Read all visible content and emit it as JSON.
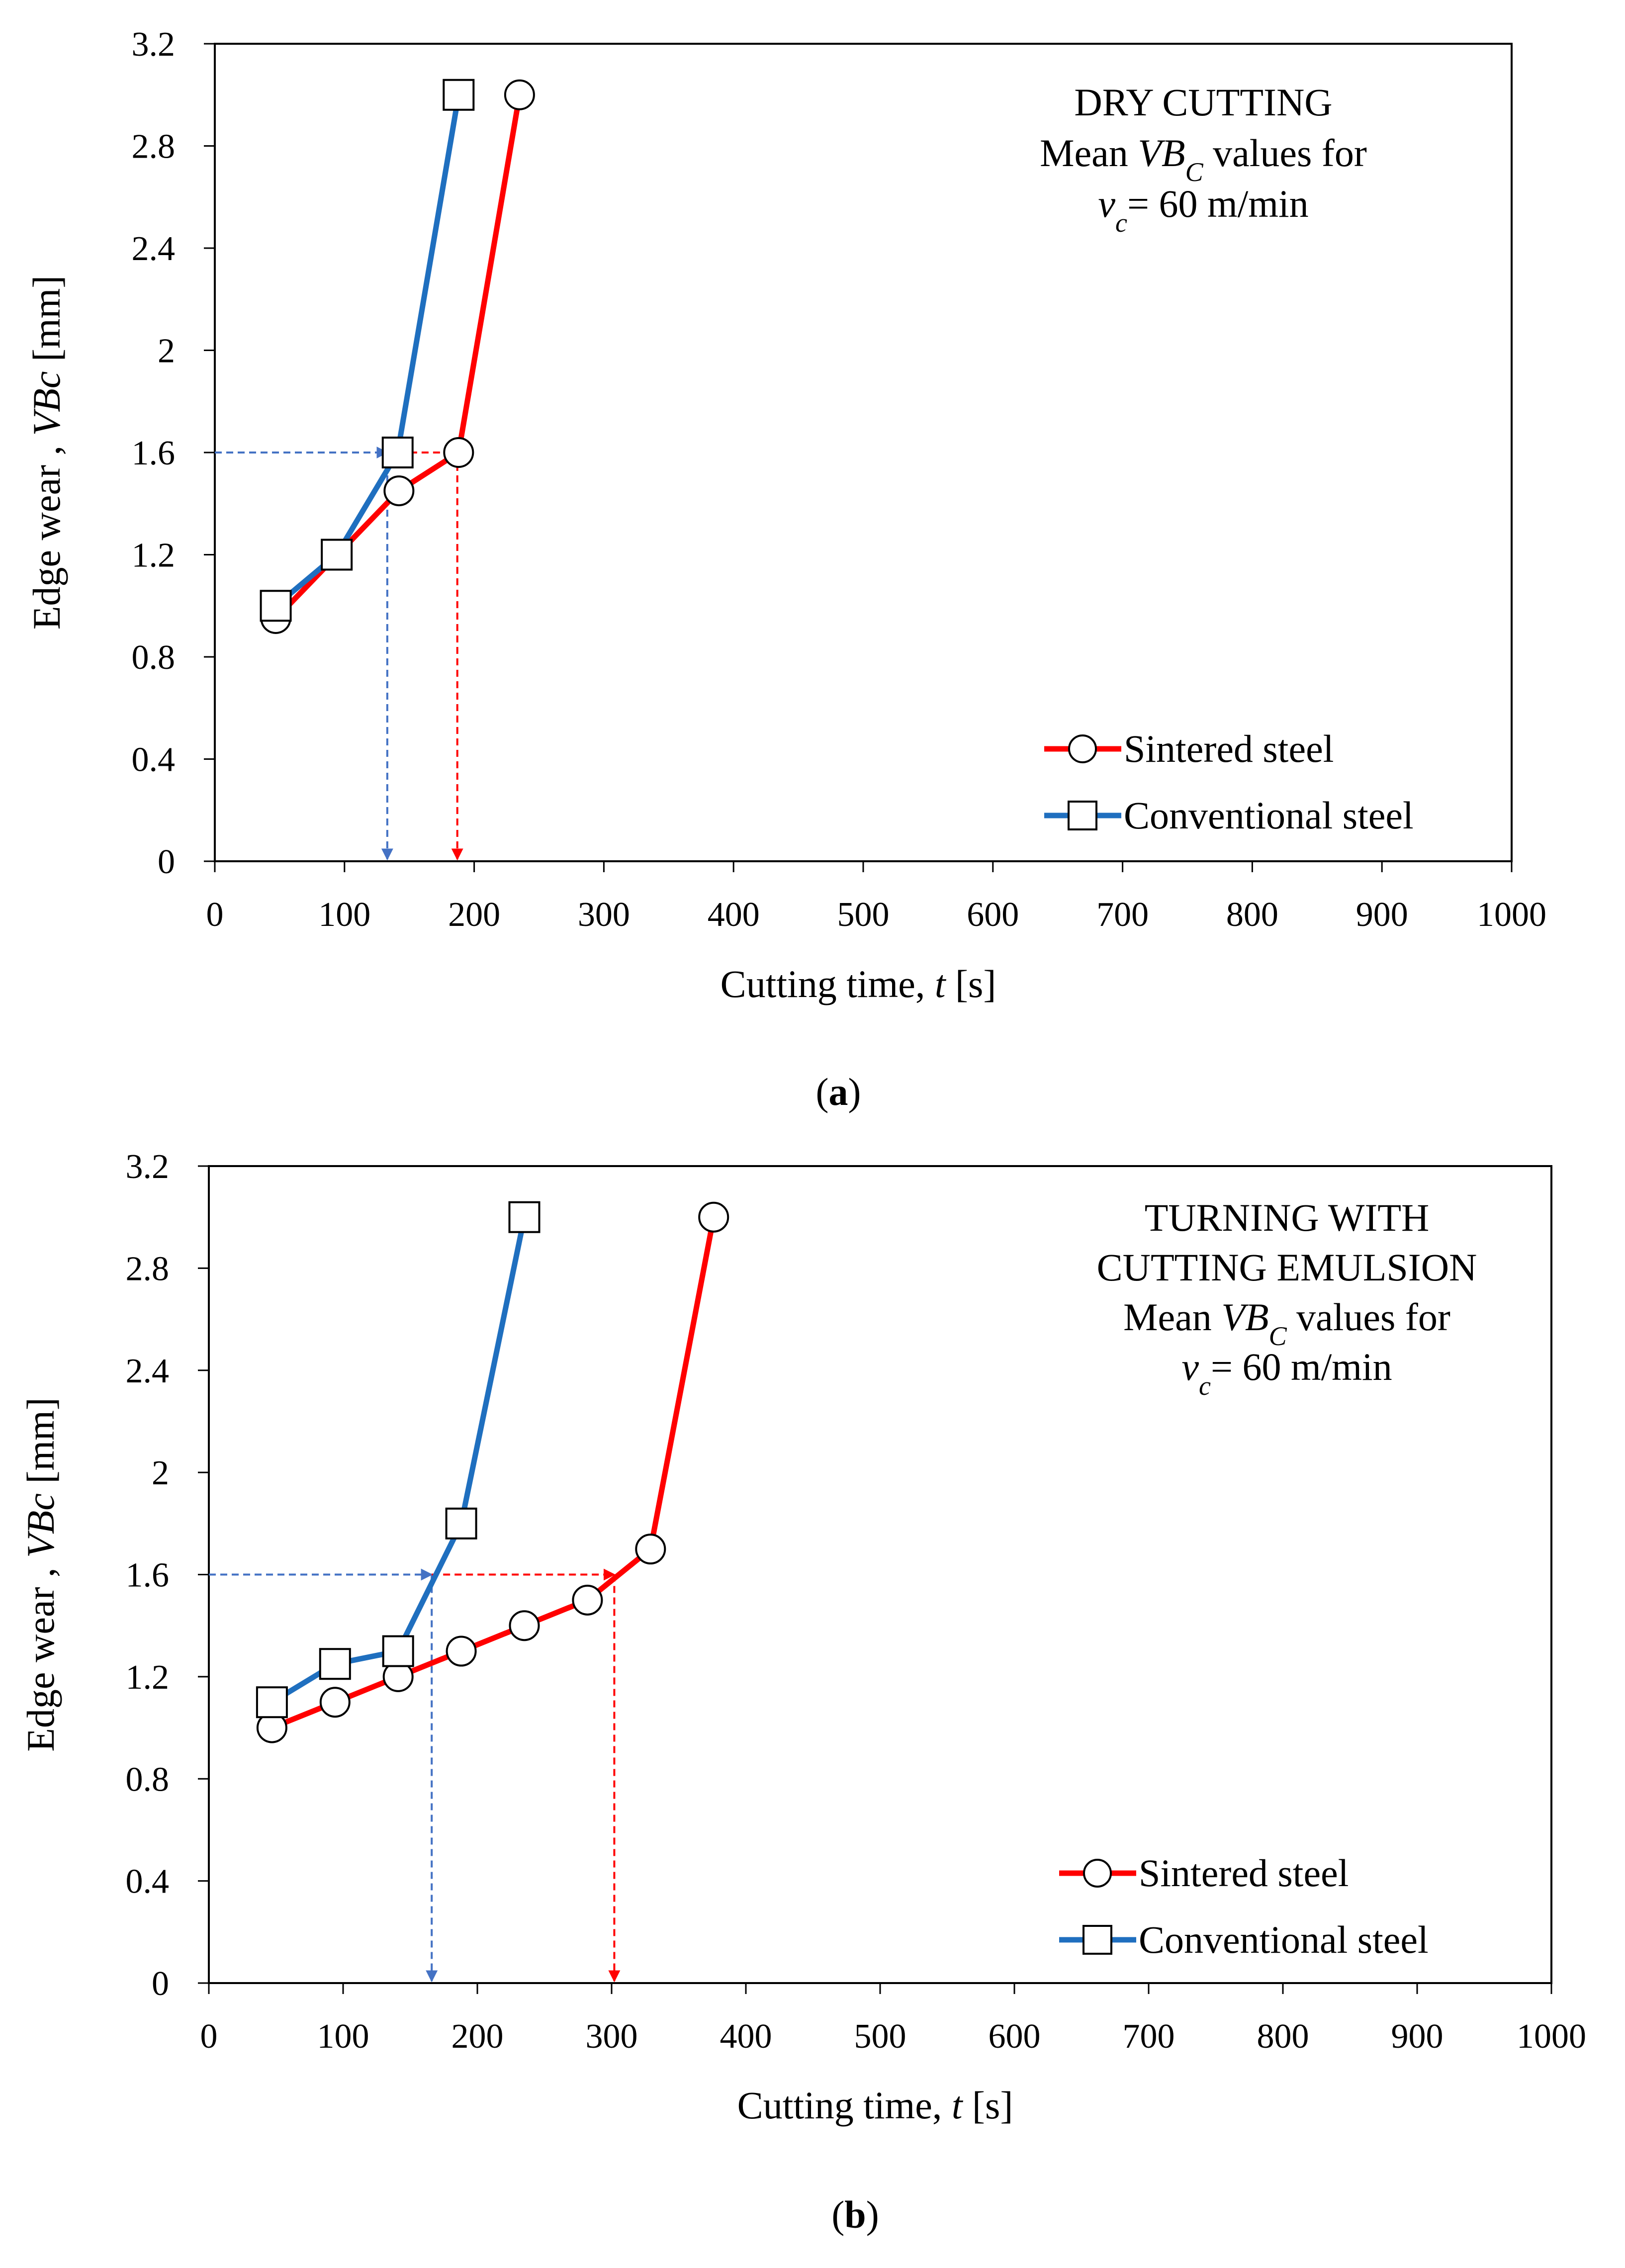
{
  "colors": {
    "sintered": "#ff0000",
    "conventional": "#1f6fbf",
    "frame": "#000000",
    "arrow_blue": "#4472c4"
  },
  "chart_data": [
    {
      "type": "line",
      "panel_label": "a",
      "xlabel_text": "Cutting  time, ",
      "xlabel_var": "t",
      "xlabel_unit": " [s]",
      "ylabel_text": "Edge wear ,  ",
      "ylabel_var": "VBc",
      "ylabel_unit": " [mm]",
      "xlim": [
        0,
        1000
      ],
      "ylim": [
        0,
        3.2
      ],
      "xticks": [
        0,
        100,
        200,
        300,
        400,
        500,
        600,
        700,
        800,
        900,
        1000
      ],
      "yticks": [
        0,
        0.4,
        0.8,
        1.2,
        1.6,
        2,
        2.4,
        2.8,
        3.2
      ],
      "annotation": [
        {
          "parts": [
            {
              "t": "DRY  CUTTING"
            }
          ]
        },
        {
          "parts": [
            {
              "t": "Mean "
            },
            {
              "t": "VB",
              "i": true
            },
            {
              "t": "C",
              "i": true,
              "sub": true
            },
            {
              "t": "  values for"
            }
          ]
        },
        {
          "parts": [
            {
              "t": "v",
              "i": true
            },
            {
              "t": "c",
              "i": true,
              "sub": true
            },
            {
              "t": "= 60 m/min"
            }
          ]
        }
      ],
      "series": [
        {
          "name": "Sintered steel",
          "marker": "circle",
          "x": [
            47,
            142,
            188,
            235
          ],
          "y": [
            0.95,
            1.45,
            1.6,
            3.0
          ]
        },
        {
          "name": "Conventional steel",
          "marker": "square",
          "x": [
            47,
            94,
            141,
            188
          ],
          "y": [
            1.0,
            1.2,
            1.6,
            3.0
          ]
        }
      ],
      "guide_lines": [
        {
          "series": "Conventional steel",
          "level": 1.6,
          "t": 133
        },
        {
          "series": "Sintered steel",
          "level": 1.6,
          "t": 187
        }
      ]
    },
    {
      "type": "line",
      "panel_label": "b",
      "xlabel_text": "Cutting  time, ",
      "xlabel_var": "t",
      "xlabel_unit": " [s]",
      "ylabel_text": "Edge wear ,  ",
      "ylabel_var": "VBc",
      "ylabel_unit": " [mm]",
      "xlim": [
        0,
        1000
      ],
      "ylim": [
        0,
        3.2
      ],
      "xticks": [
        0,
        100,
        200,
        300,
        400,
        500,
        600,
        700,
        800,
        900,
        1000
      ],
      "yticks": [
        0,
        0.4,
        0.8,
        1.2,
        1.6,
        2,
        2.4,
        2.8,
        3.2
      ],
      "annotation": [
        {
          "parts": [
            {
              "t": "TURNING  WITH"
            }
          ]
        },
        {
          "parts": [
            {
              "t": "CUTTING  EMULSION"
            }
          ]
        },
        {
          "parts": [
            {
              "t": "Mean "
            },
            {
              "t": "VB",
              "i": true
            },
            {
              "t": "C",
              "i": true,
              "sub": true
            },
            {
              "t": " values for"
            }
          ]
        },
        {
          "parts": [
            {
              "t": "v",
              "i": true
            },
            {
              "t": "c",
              "i": true,
              "sub": true
            },
            {
              "t": "= 60 m/min"
            }
          ]
        }
      ],
      "series": [
        {
          "name": "Sintered steel",
          "marker": "circle",
          "x": [
            47,
            94,
            141,
            188,
            235,
            282,
            329,
            376
          ],
          "y": [
            1.0,
            1.1,
            1.2,
            1.3,
            1.4,
            1.5,
            1.7,
            3.0
          ]
        },
        {
          "name": "Conventional steel",
          "marker": "square",
          "x": [
            47,
            94,
            141,
            188,
            235
          ],
          "y": [
            1.1,
            1.25,
            1.3,
            1.8,
            3.0
          ]
        }
      ],
      "guide_lines": [
        {
          "series": "Conventional steel",
          "level": 1.6,
          "t": 166
        },
        {
          "series": "Sintered steel",
          "level": 1.6,
          "t": 302
        }
      ]
    }
  ]
}
